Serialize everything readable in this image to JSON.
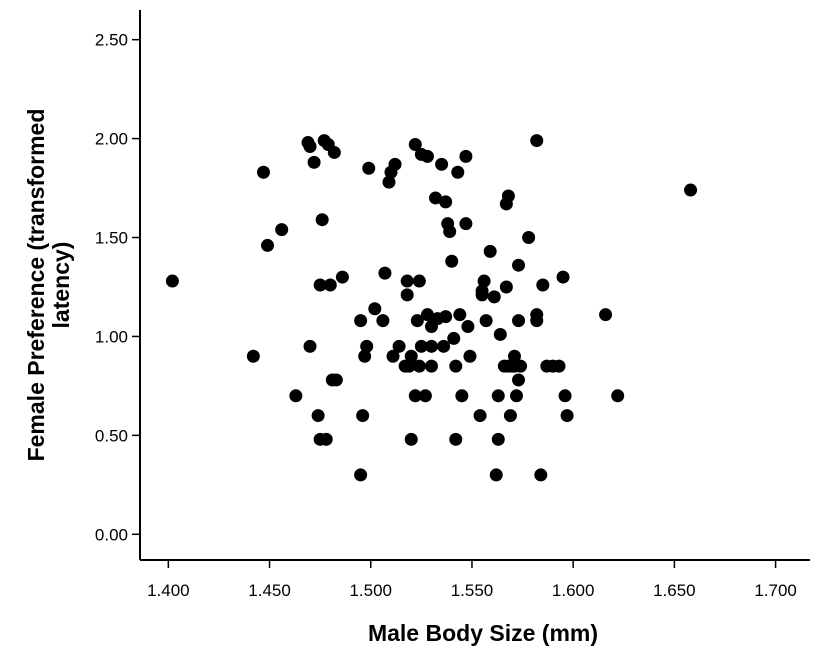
{
  "chart_data": {
    "type": "scatter",
    "title": "",
    "xlabel": "Male Body Size (mm)",
    "ylabel_lines": [
      "Female Preference (transformed",
      "latency)"
    ],
    "xlim": [
      1.386,
      1.717
    ],
    "ylim": [
      -0.13,
      2.65
    ],
    "x_ticks": [
      "1.400",
      "1.450",
      "1.500",
      "1.550",
      "1.600",
      "1.650",
      "1.700"
    ],
    "y_ticks": [
      "0.00",
      "0.50",
      "1.00",
      "1.50",
      "2.00",
      "2.50"
    ],
    "grid": false,
    "point_color": "#000000",
    "points": [
      [
        1.402,
        1.28
      ],
      [
        1.442,
        0.9
      ],
      [
        1.447,
        1.83
      ],
      [
        1.449,
        1.46
      ],
      [
        1.456,
        1.54
      ],
      [
        1.463,
        0.7
      ],
      [
        1.469,
        1.98
      ],
      [
        1.47,
        1.96
      ],
      [
        1.47,
        0.95
      ],
      [
        1.472,
        1.88
      ],
      [
        1.474,
        0.6
      ],
      [
        1.475,
        0.48
      ],
      [
        1.475,
        1.26
      ],
      [
        1.476,
        1.59
      ],
      [
        1.477,
        1.99
      ],
      [
        1.478,
        0.48
      ],
      [
        1.479,
        1.97
      ],
      [
        1.48,
        1.26
      ],
      [
        1.481,
        0.78
      ],
      [
        1.482,
        1.93
      ],
      [
        1.483,
        0.78
      ],
      [
        1.486,
        1.3
      ],
      [
        1.495,
        1.08
      ],
      [
        1.495,
        0.3
      ],
      [
        1.496,
        0.6
      ],
      [
        1.497,
        0.9
      ],
      [
        1.498,
        0.95
      ],
      [
        1.499,
        1.85
      ],
      [
        1.502,
        1.14
      ],
      [
        1.506,
        1.08
      ],
      [
        1.507,
        1.32
      ],
      [
        1.509,
        1.78
      ],
      [
        1.51,
        1.83
      ],
      [
        1.511,
        0.9
      ],
      [
        1.512,
        1.87
      ],
      [
        1.514,
        0.95
      ],
      [
        1.517,
        0.85
      ],
      [
        1.518,
        1.21
      ],
      [
        1.518,
        1.28
      ],
      [
        1.519,
        0.85
      ],
      [
        1.52,
        0.48
      ],
      [
        1.52,
        0.9
      ],
      [
        1.522,
        0.7
      ],
      [
        1.522,
        1.97
      ],
      [
        1.523,
        1.08
      ],
      [
        1.524,
        1.28
      ],
      [
        1.524,
        0.85
      ],
      [
        1.525,
        1.92
      ],
      [
        1.525,
        0.95
      ],
      [
        1.527,
        0.7
      ],
      [
        1.528,
        1.91
      ],
      [
        1.528,
        1.11
      ],
      [
        1.53,
        1.05
      ],
      [
        1.53,
        0.85
      ],
      [
        1.53,
        0.95
      ],
      [
        1.532,
        1.7
      ],
      [
        1.533,
        1.09
      ],
      [
        1.535,
        1.87
      ],
      [
        1.536,
        0.95
      ],
      [
        1.537,
        1.68
      ],
      [
        1.537,
        1.1
      ],
      [
        1.538,
        1.57
      ],
      [
        1.539,
        1.53
      ],
      [
        1.54,
        1.38
      ],
      [
        1.541,
        0.99
      ],
      [
        1.542,
        0.48
      ],
      [
        1.542,
        0.85
      ],
      [
        1.543,
        1.83
      ],
      [
        1.544,
        1.11
      ],
      [
        1.545,
        0.7
      ],
      [
        1.547,
        1.57
      ],
      [
        1.547,
        1.91
      ],
      [
        1.548,
        1.05
      ],
      [
        1.549,
        0.9
      ],
      [
        1.554,
        0.6
      ],
      [
        1.555,
        1.23
      ],
      [
        1.555,
        1.21
      ],
      [
        1.556,
        1.28
      ],
      [
        1.557,
        1.08
      ],
      [
        1.559,
        1.43
      ],
      [
        1.561,
        1.2
      ],
      [
        1.562,
        0.3
      ],
      [
        1.563,
        0.7
      ],
      [
        1.563,
        0.48
      ],
      [
        1.564,
        1.01
      ],
      [
        1.566,
        0.85
      ],
      [
        1.567,
        1.67
      ],
      [
        1.567,
        1.25
      ],
      [
        1.568,
        1.71
      ],
      [
        1.568,
        0.85
      ],
      [
        1.569,
        0.6
      ],
      [
        1.57,
        0.85
      ],
      [
        1.571,
        0.9
      ],
      [
        1.571,
        0.85
      ],
      [
        1.572,
        0.7
      ],
      [
        1.573,
        1.08
      ],
      [
        1.573,
        0.78
      ],
      [
        1.573,
        1.36
      ],
      [
        1.574,
        0.85
      ],
      [
        1.578,
        1.5
      ],
      [
        1.582,
        1.99
      ],
      [
        1.582,
        1.08
      ],
      [
        1.582,
        1.11
      ],
      [
        1.584,
        0.3
      ],
      [
        1.585,
        1.26
      ],
      [
        1.587,
        0.85
      ],
      [
        1.59,
        0.85
      ],
      [
        1.593,
        0.85
      ],
      [
        1.595,
        1.3
      ],
      [
        1.596,
        0.7
      ],
      [
        1.597,
        0.6
      ],
      [
        1.616,
        1.11
      ],
      [
        1.622,
        0.7
      ],
      [
        1.658,
        1.74
      ]
    ]
  }
}
